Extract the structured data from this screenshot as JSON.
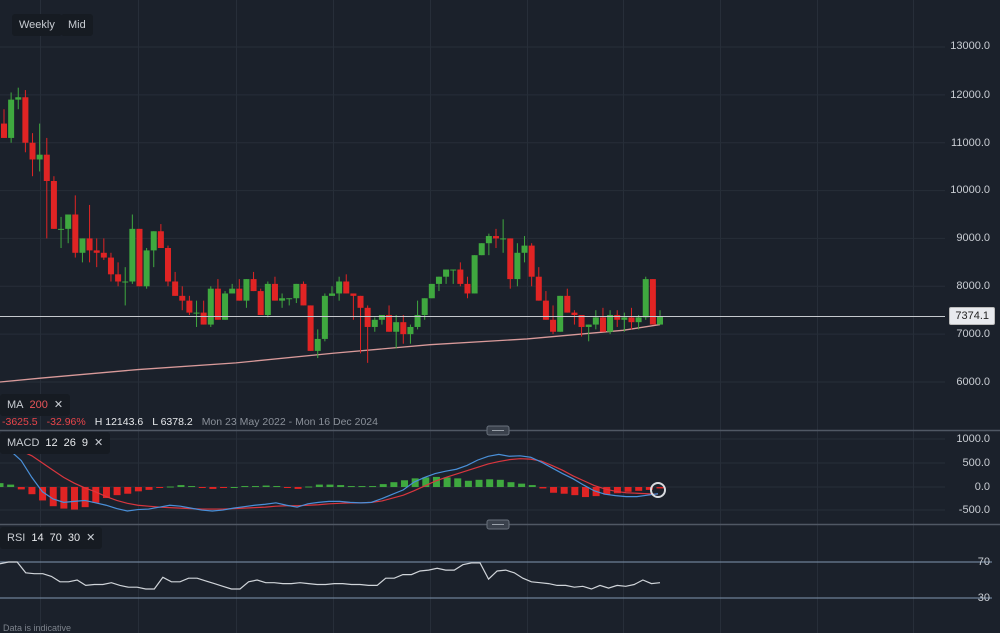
{
  "toolbar": {
    "interval_label": "Weekly",
    "price_type_label": "Mid"
  },
  "price_axis": {
    "labels": [
      "13000.0",
      "12000.0",
      "11000.0",
      "10000.0",
      "9000.0",
      "8000.0",
      "7000.0",
      "6000.0"
    ],
    "current_price": "7374.1"
  },
  "ma_indicator": {
    "name": "MA",
    "period": "200",
    "close_icon": "close-icon"
  },
  "stats": {
    "change": "-3625.5",
    "change_pct": "-32.96%",
    "high": "H 12143.6",
    "low": "L 6378.2",
    "range": "Mon 23 May 2022 - Mon 16 Dec 2024"
  },
  "macd_indicator": {
    "name": "MACD",
    "fast": "12",
    "slow": "26",
    "signal": "9",
    "close_icon": "close-icon",
    "axis_labels": [
      "1000.0",
      "500.0",
      "0.0",
      "-500.0"
    ]
  },
  "rsi_indicator": {
    "name": "RSI",
    "period": "14",
    "upper": "70",
    "lower": "30",
    "close_icon": "close-icon",
    "axis_labels": [
      "70",
      "30"
    ]
  },
  "footer": {
    "disclaimer": "Data is indicative"
  },
  "colors": {
    "background": "#1b212b",
    "up": "#3fa83f",
    "down": "#e02424",
    "ma_line": "#d99a9a",
    "macd_line": "#4a90d9",
    "signal_line": "#d9363e",
    "rsi_line": "#d0d4d9",
    "grid": "#2a313c"
  },
  "chart_data": [
    {
      "type": "candlestick",
      "title": "Weekly price with MA 200",
      "x_range": "Mon 23 May 2022 - Mon 16 Dec 2024",
      "ylim": [
        5500,
        13500
      ],
      "yticks": [
        6000,
        7000,
        8000,
        9000,
        10000,
        11000,
        12000,
        13000
      ],
      "last_price": 7374.1,
      "high": 12143.6,
      "low": 6378.2,
      "change": -3625.5,
      "change_pct": -32.96,
      "candles": [
        [
          11400,
          11700,
          11100,
          11100
        ],
        [
          11100,
          12050,
          11000,
          11900
        ],
        [
          11900,
          12150,
          11700,
          11950
        ],
        [
          11950,
          12100,
          10800,
          11000
        ],
        [
          11000,
          11200,
          10300,
          10650
        ],
        [
          10650,
          11400,
          10400,
          10750
        ],
        [
          10750,
          11100,
          9000,
          10200
        ],
        [
          10200,
          10300,
          9200,
          9200
        ],
        [
          9200,
          9450,
          8800,
          9200
        ],
        [
          9200,
          9300,
          8900,
          9500
        ],
        [
          9500,
          9900,
          8600,
          8700
        ],
        [
          8700,
          9000,
          8500,
          9000
        ],
        [
          9000,
          9700,
          8500,
          8750
        ],
        [
          8750,
          9000,
          8400,
          8700
        ],
        [
          8700,
          9000,
          8550,
          8600
        ],
        [
          8600,
          8700,
          8100,
          8250
        ],
        [
          8250,
          8500,
          8000,
          8100
        ],
        [
          8100,
          8400,
          7600,
          8100
        ],
        [
          8100,
          9500,
          8050,
          9200
        ],
        [
          9200,
          9150,
          8000,
          8000
        ],
        [
          8000,
          8800,
          7950,
          8750
        ],
        [
          8750,
          9100,
          8400,
          9150
        ],
        [
          9150,
          9300,
          8800,
          8800
        ],
        [
          8800,
          8850,
          8000,
          8100
        ],
        [
          8100,
          8300,
          7800,
          7800
        ],
        [
          7800,
          8000,
          7500,
          7700
        ],
        [
          7700,
          7800,
          7400,
          7450
        ],
        [
          7450,
          7700,
          7150,
          7450
        ],
        [
          7450,
          7700,
          7300,
          7200
        ],
        [
          7200,
          8000,
          7150,
          7950
        ],
        [
          7950,
          8150,
          7300,
          7300
        ],
        [
          7300,
          7900,
          7350,
          7850
        ],
        [
          7850,
          8050,
          7850,
          7950
        ],
        [
          7950,
          8150,
          7700,
          7700
        ],
        [
          7700,
          8100,
          7550,
          8150
        ],
        [
          8150,
          8300,
          7900,
          7900
        ],
        [
          7900,
          7950,
          7400,
          7400
        ],
        [
          7400,
          8100,
          7350,
          8050
        ],
        [
          8050,
          8200,
          7700,
          7700
        ],
        [
          7700,
          7850,
          7550,
          7750
        ],
        [
          7750,
          7750,
          7600,
          7750
        ],
        [
          7750,
          8000,
          7650,
          8050
        ],
        [
          8050,
          8100,
          7600,
          7600
        ],
        [
          7600,
          7600,
          6700,
          6650
        ],
        [
          6650,
          7100,
          6500,
          6900
        ],
        [
          6900,
          7850,
          6850,
          7800
        ],
        [
          7800,
          8000,
          7850,
          7850
        ],
        [
          7850,
          8200,
          7700,
          8100
        ],
        [
          8100,
          8250,
          7950,
          7850
        ],
        [
          7850,
          7850,
          7300,
          7800
        ],
        [
          7800,
          7800,
          6600,
          7550
        ],
        [
          7550,
          7600,
          6400,
          7150
        ],
        [
          7150,
          7350,
          7050,
          7300
        ],
        [
          7300,
          7350,
          7200,
          7400
        ],
        [
          7400,
          7600,
          7100,
          7050
        ],
        [
          7050,
          7400,
          6700,
          7250
        ],
        [
          7250,
          7400,
          6800,
          7000
        ],
        [
          7000,
          7200,
          6800,
          7150
        ],
        [
          7150,
          7700,
          7100,
          7400
        ],
        [
          7400,
          7600,
          7300,
          7750
        ],
        [
          7750,
          8000,
          7750,
          8050
        ],
        [
          8050,
          8100,
          7900,
          8200
        ],
        [
          8200,
          8300,
          8050,
          8350
        ],
        [
          8350,
          8300,
          8050,
          8350
        ],
        [
          8350,
          8500,
          8000,
          8050
        ],
        [
          8050,
          8200,
          7750,
          7850
        ],
        [
          7850,
          8600,
          7900,
          8650
        ],
        [
          8650,
          8900,
          8650,
          8900
        ],
        [
          8900,
          9100,
          8650,
          9050
        ],
        [
          9050,
          9200,
          8800,
          9000
        ],
        [
          9000,
          9400,
          8700,
          9000
        ],
        [
          9000,
          8800,
          7950,
          8150
        ],
        [
          8150,
          8900,
          8000,
          8700
        ],
        [
          8700,
          9050,
          8500,
          8850
        ],
        [
          8850,
          8900,
          8000,
          8200
        ],
        [
          8200,
          8400,
          7850,
          7700
        ],
        [
          7700,
          7900,
          7400,
          7300
        ],
        [
          7300,
          7600,
          7000,
          7050
        ],
        [
          7050,
          7750,
          7500,
          7800
        ],
        [
          7800,
          7950,
          7500,
          7450
        ],
        [
          7450,
          7500,
          7200,
          7400
        ],
        [
          7400,
          7250,
          6950,
          7150
        ],
        [
          7150,
          7200,
          6850,
          7200
        ],
        [
          7200,
          7500,
          7100,
          7350
        ],
        [
          7350,
          7550,
          7050,
          7050
        ],
        [
          7050,
          7500,
          7000,
          7400
        ],
        [
          7400,
          7500,
          7150,
          7300
        ],
        [
          7300,
          7450,
          7050,
          7350
        ],
        [
          7350,
          7550,
          7100,
          7250
        ],
        [
          7250,
          7400,
          7100,
          7350
        ],
        [
          7350,
          8200,
          7300,
          8150
        ],
        [
          8150,
          8150,
          7200,
          7200
        ],
        [
          7200,
          7500,
          7200,
          7374.1
        ]
      ],
      "ma200": [
        [
          0,
          6000
        ],
        [
          40,
          6080
        ],
        [
          138,
          6260
        ],
        [
          236,
          6400
        ],
        [
          333,
          6600
        ],
        [
          430,
          6780
        ],
        [
          527,
          6900
        ],
        [
          623,
          7080
        ],
        [
          660,
          7200
        ]
      ]
    },
    {
      "type": "line",
      "title": "MACD 12 26 9",
      "ylim": [
        -750,
        1100
      ],
      "yticks": [
        -500,
        0,
        500,
        1000
      ],
      "series": [
        {
          "name": "MACD",
          "values": [
            900,
            750,
            550,
            200,
            -100,
            -250,
            -320,
            -300,
            -280,
            -330,
            -380,
            -450,
            -500,
            -470,
            -460,
            -420,
            -380,
            -400,
            -440,
            -480,
            -500,
            -480,
            -440,
            -410,
            -380,
            -360,
            -330,
            -380,
            -420,
            -350,
            -320,
            -300,
            -300,
            -320,
            -330,
            -320,
            -240,
            -150,
            -60,
            100,
            200,
            280,
            330,
            370,
            450,
            560,
            640,
            680,
            640,
            650,
            620,
            520,
            400,
            280,
            170,
            40,
            -80,
            -150,
            -180,
            -200,
            -200,
            -170,
            -140
          ]
        },
        {
          "name": "Signal",
          "values": [
            820,
            800,
            750,
            650,
            500,
            350,
            200,
            80,
            -20,
            -100,
            -200,
            -280,
            -340,
            -380,
            -400,
            -420,
            -430,
            -440,
            -450,
            -460,
            -460,
            -460,
            -450,
            -440,
            -430,
            -420,
            -400,
            -390,
            -390,
            -380,
            -370,
            -350,
            -340,
            -330,
            -330,
            -320,
            -290,
            -230,
            -170,
            -80,
            20,
            120,
            200,
            270,
            340,
            410,
            480,
            530,
            570,
            590,
            580,
            540,
            450,
            350,
            230,
            130,
            30,
            -40,
            -90,
            -120,
            -130,
            -140,
            -150
          ]
        },
        {
          "name": "Histogram",
          "values": [
            80,
            50,
            -50,
            -150,
            -280,
            -400,
            -450,
            -470,
            -420,
            -330,
            -230,
            -170,
            -140,
            -90,
            -60,
            -20,
            10,
            40,
            20,
            -20,
            -40,
            -20,
            0,
            20,
            20,
            30,
            20,
            -20,
            -40,
            10,
            50,
            50,
            40,
            20,
            20,
            20,
            60,
            100,
            140,
            180,
            200,
            210,
            200,
            180,
            130,
            150,
            160,
            150,
            100,
            70,
            40,
            -30,
            -120,
            -140,
            -170,
            -210,
            -190,
            -160,
            -130,
            -100,
            -80,
            -60,
            -30
          ]
        }
      ]
    },
    {
      "type": "line",
      "title": "RSI 14 70 30",
      "ylim": [
        20,
        80
      ],
      "yticks": [
        30,
        70
      ],
      "series": [
        {
          "name": "RSI",
          "values": [
            68,
            70,
            70,
            58,
            57,
            57,
            54,
            48,
            48,
            50,
            44,
            45,
            45,
            47,
            44,
            42,
            42,
            40,
            40,
            53,
            48,
            48,
            52,
            52,
            49,
            46,
            43,
            40,
            40,
            48,
            50,
            47,
            47,
            46,
            46,
            47,
            46,
            45,
            45,
            46,
            46,
            45,
            45,
            44,
            44,
            52,
            52,
            56,
            56,
            60,
            61,
            63,
            61,
            61,
            67,
            69,
            69,
            51,
            60,
            61,
            58,
            52,
            48,
            47,
            46,
            44,
            44,
            42,
            43,
            40,
            44,
            41,
            44,
            43,
            45,
            50,
            46,
            47
          ]
        }
      ]
    }
  ]
}
